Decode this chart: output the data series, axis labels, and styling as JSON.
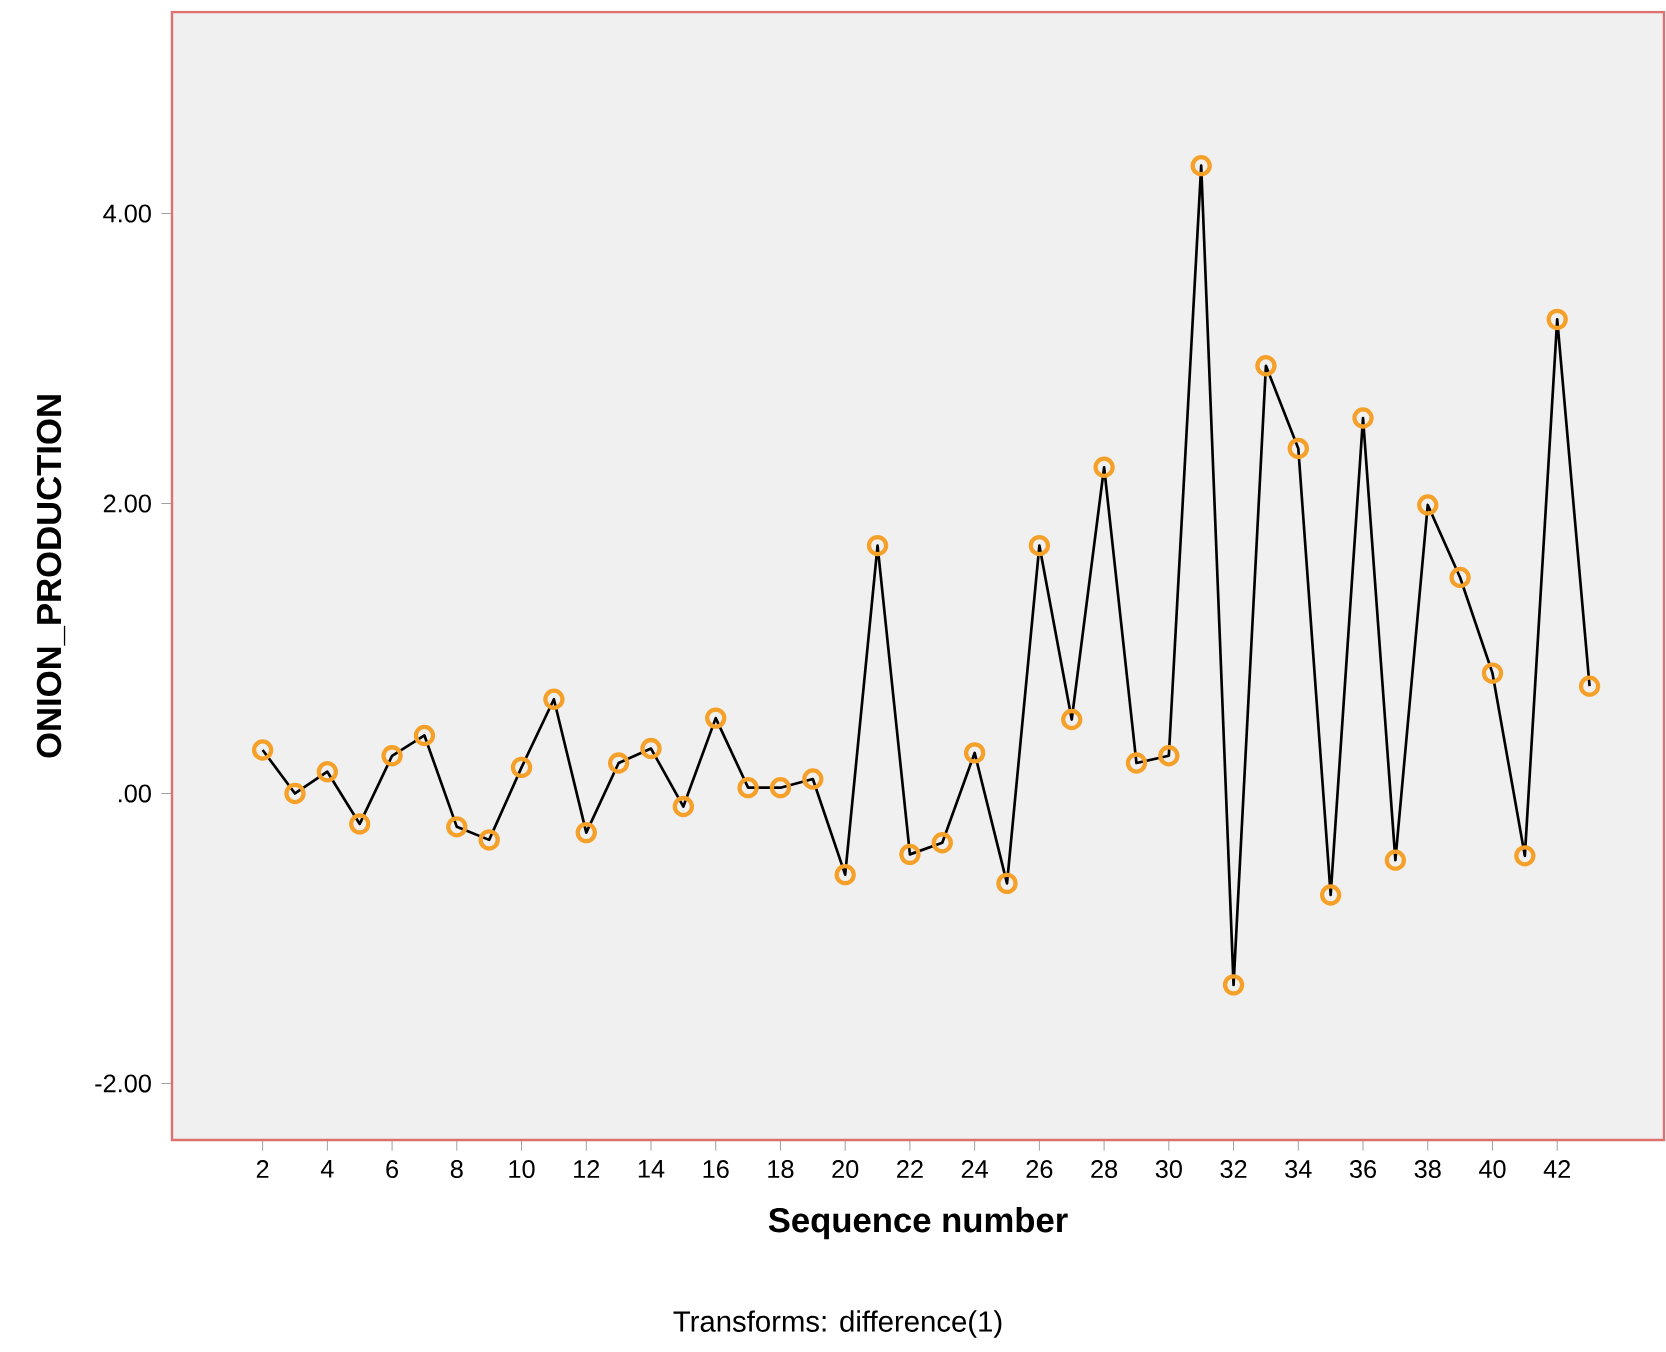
{
  "chart_data": {
    "type": "line",
    "xlabel": "Sequence number",
    "ylabel": "ONION_PRODUCTION",
    "annotations": [
      "Transforms: difference(1)"
    ],
    "x": [
      2,
      3,
      4,
      5,
      6,
      7,
      8,
      9,
      10,
      11,
      12,
      13,
      14,
      15,
      16,
      17,
      18,
      19,
      20,
      21,
      22,
      23,
      24,
      25,
      26,
      27,
      28,
      29,
      30,
      31,
      32,
      33,
      34,
      35,
      36,
      37,
      38,
      39,
      40,
      41,
      42,
      43
    ],
    "series": [
      {
        "color": "#000000",
        "values": [
          0.3,
          0.0,
          0.15,
          -0.21,
          0.26,
          0.4,
          -0.23,
          -0.32,
          0.18,
          0.65,
          -0.27,
          0.21,
          0.31,
          -0.09,
          0.52,
          0.04,
          0.04,
          0.1,
          -0.56,
          1.71,
          -0.42,
          -0.34,
          0.28,
          -0.62,
          1.71,
          0.51,
          2.25,
          0.21,
          0.26,
          4.33,
          -1.32,
          2.95,
          2.38,
          -0.7,
          2.59,
          -0.46,
          1.99,
          1.49,
          0.83,
          -0.43,
          3.27,
          0.74
        ]
      }
    ],
    "xlim": [
      -0.8,
      45.3
    ],
    "ylim": [
      -2.39,
      5.39
    ],
    "xticks": [
      2,
      4,
      6,
      8,
      10,
      12,
      14,
      16,
      18,
      20,
      22,
      24,
      26,
      28,
      30,
      32,
      34,
      36,
      38,
      40,
      42
    ],
    "yticks": [
      {
        "value": -2,
        "label": "-2.00"
      },
      {
        "value": 0,
        "label": ".00"
      },
      {
        "value": 2,
        "label": "2.00"
      },
      {
        "value": 4,
        "label": "4.00"
      }
    ],
    "grid": false,
    "marker": "circle",
    "line_style": "solid"
  }
}
